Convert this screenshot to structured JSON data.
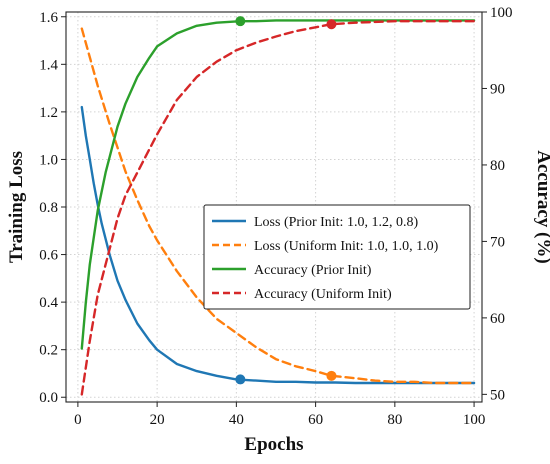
{
  "chart_data": {
    "type": "line",
    "xlabel": "Epochs",
    "ylabel_left": "Training Loss",
    "ylabel_right": "Accuracy (%)",
    "xlim": [
      -3,
      102
    ],
    "ylim_left": [
      -0.02,
      1.62
    ],
    "ylim_right": [
      49,
      100
    ],
    "x_ticks": [
      0,
      20,
      40,
      60,
      80,
      100
    ],
    "y_left_ticks": [
      0.0,
      0.2,
      0.4,
      0.6,
      0.8,
      1.0,
      1.2,
      1.4,
      1.6
    ],
    "y_right_ticks": [
      50,
      60,
      70,
      80,
      90,
      100
    ],
    "grid": true,
    "legend_position": "center-right",
    "series": [
      {
        "name": "Loss (Prior Init: 1.0, 1.2, 0.8)",
        "axis": "left",
        "color": "#1f77b4",
        "style": "solid",
        "x": [
          1,
          2,
          3,
          4,
          5,
          6,
          8,
          10,
          12,
          15,
          18,
          20,
          25,
          30,
          35,
          40,
          45,
          50,
          55,
          60,
          65,
          70,
          75,
          80,
          85,
          90,
          95,
          100
        ],
        "y": [
          1.22,
          1.1,
          1.0,
          0.9,
          0.81,
          0.73,
          0.6,
          0.49,
          0.41,
          0.31,
          0.24,
          0.2,
          0.14,
          0.11,
          0.09,
          0.075,
          0.07,
          0.065,
          0.065,
          0.062,
          0.062,
          0.06,
          0.06,
          0.06,
          0.06,
          0.06,
          0.06,
          0.06
        ],
        "marker": {
          "x": 41,
          "y": 0.075
        }
      },
      {
        "name": "Loss (Uniform Init: 1.0, 1.0, 1.0)",
        "axis": "left",
        "color": "#ff7f0e",
        "style": "dashed",
        "x": [
          1,
          3,
          5,
          8,
          10,
          12,
          15,
          18,
          20,
          25,
          30,
          35,
          40,
          45,
          50,
          55,
          60,
          64,
          70,
          75,
          80,
          85,
          90,
          95,
          100
        ],
        "y": [
          1.55,
          1.43,
          1.31,
          1.15,
          1.05,
          0.95,
          0.83,
          0.72,
          0.66,
          0.53,
          0.42,
          0.33,
          0.27,
          0.21,
          0.16,
          0.13,
          0.11,
          0.09,
          0.08,
          0.07,
          0.065,
          0.065,
          0.06,
          0.06,
          0.06
        ],
        "marker": {
          "x": 64,
          "y": 0.09
        }
      },
      {
        "name": "Accuracy (Prior Init)",
        "axis": "right",
        "color": "#2ca02c",
        "style": "solid",
        "x": [
          1,
          2,
          3,
          5,
          7,
          10,
          12,
          15,
          18,
          20,
          25,
          30,
          35,
          41,
          45,
          50,
          55,
          60,
          65,
          70,
          80,
          90,
          100
        ],
        "y": [
          56,
          62,
          67,
          74,
          79,
          85,
          88,
          91.5,
          94,
          95.5,
          97.2,
          98.2,
          98.6,
          98.8,
          98.8,
          98.9,
          98.9,
          98.9,
          98.9,
          98.9,
          98.9,
          98.9,
          98.9
        ],
        "marker": {
          "x": 41,
          "y": 98.8
        }
      },
      {
        "name": "Accuracy (Uniform Init)",
        "axis": "right",
        "color": "#d62728",
        "style": "dashed",
        "x": [
          1,
          3,
          5,
          8,
          10,
          12,
          15,
          18,
          20,
          25,
          30,
          35,
          40,
          45,
          50,
          55,
          60,
          64,
          70,
          80,
          90,
          100
        ],
        "y": [
          50,
          57,
          63,
          69,
          73,
          76,
          79,
          82,
          84,
          88.5,
          91.5,
          93.5,
          95,
          96,
          96.8,
          97.5,
          98,
          98.4,
          98.6,
          98.8,
          98.8,
          98.8
        ],
        "marker": {
          "x": 64,
          "y": 98.4
        }
      }
    ]
  }
}
